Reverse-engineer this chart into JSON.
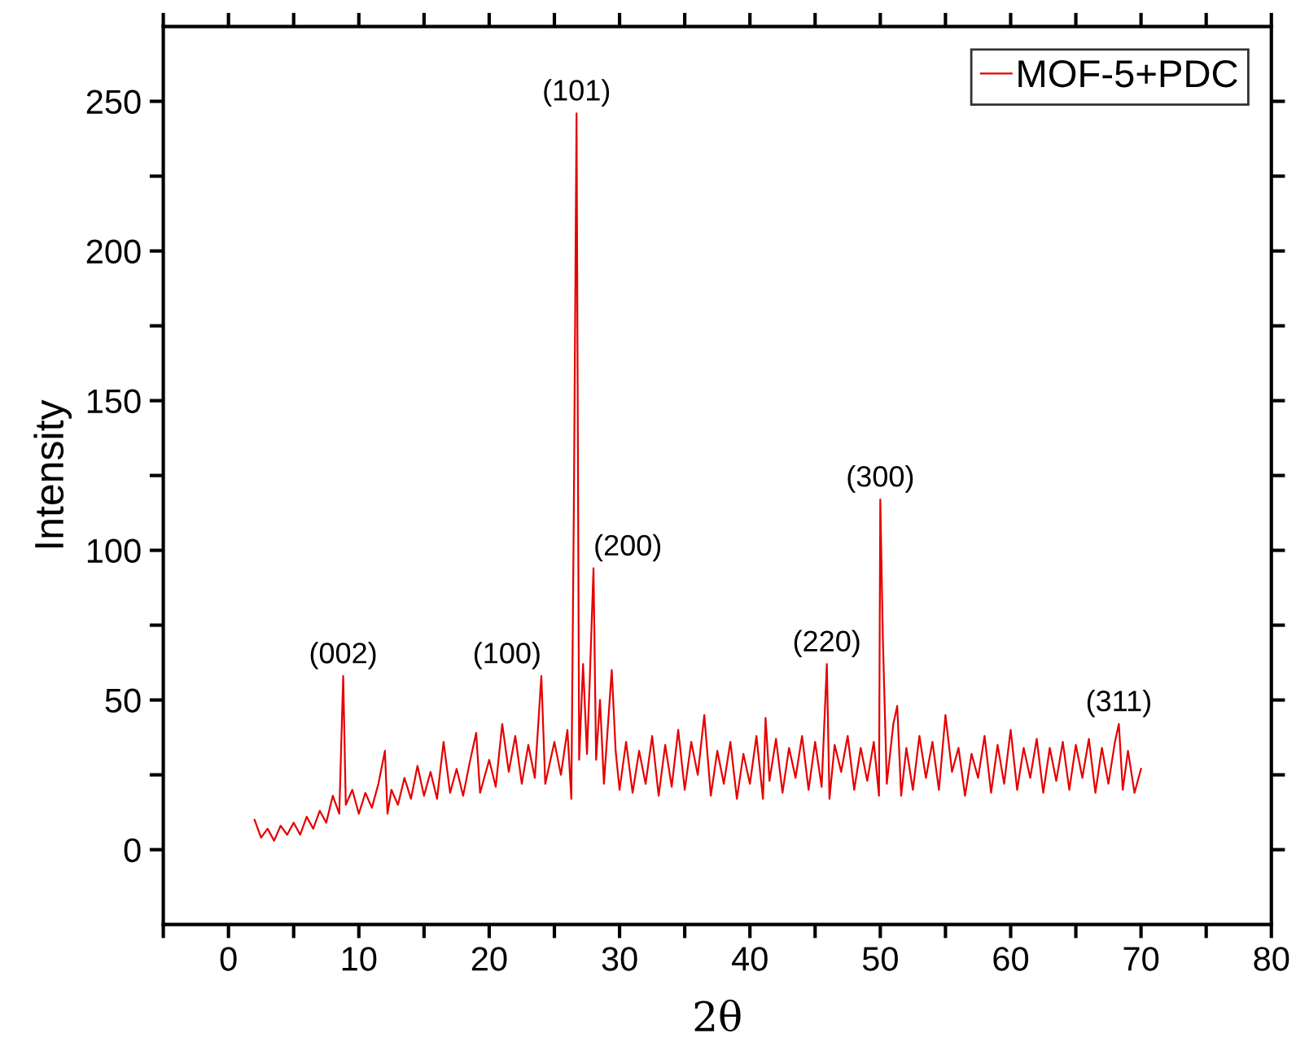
{
  "chart_data": {
    "type": "line",
    "xlabel": "2θ",
    "ylabel": "Intensity",
    "x": [
      2.0,
      2.5,
      3.0,
      3.5,
      4.0,
      4.5,
      5.0,
      5.5,
      6.0,
      6.5,
      7.0,
      7.5,
      8.0,
      8.5,
      8.8,
      9.0,
      9.5,
      10.0,
      10.5,
      11.0,
      11.5,
      12.0,
      12.2,
      12.5,
      13.0,
      13.5,
      14.0,
      14.5,
      15.0,
      15.5,
      16.0,
      16.5,
      17.0,
      17.5,
      18.0,
      18.5,
      19.0,
      19.3,
      20.0,
      20.5,
      21.0,
      21.5,
      22.0,
      22.5,
      23.0,
      23.5,
      24.0,
      24.3,
      25.0,
      25.5,
      26.0,
      26.3,
      26.5,
      26.7,
      26.9,
      27.2,
      27.5,
      27.7,
      28.0,
      28.2,
      28.5,
      28.8,
      29.4,
      29.7,
      30.0,
      30.5,
      31.0,
      31.5,
      32.0,
      32.5,
      33.0,
      33.5,
      34.0,
      34.5,
      35.0,
      35.5,
      36.0,
      36.5,
      37.0,
      37.5,
      38.0,
      38.5,
      39.0,
      39.5,
      40.0,
      40.5,
      41.0,
      41.2,
      41.5,
      42.0,
      42.5,
      43.0,
      43.5,
      44.0,
      44.5,
      45.0,
      45.5,
      45.9,
      46.1,
      46.5,
      47.0,
      47.5,
      48.0,
      48.5,
      49.0,
      49.5,
      49.9,
      50.0,
      50.2,
      50.5,
      51.0,
      51.3,
      51.6,
      52.0,
      52.5,
      53.0,
      53.5,
      54.0,
      54.5,
      55.0,
      55.5,
      56.0,
      56.5,
      57.0,
      57.5,
      58.0,
      58.5,
      59.0,
      59.5,
      60.0,
      60.5,
      61.0,
      61.5,
      62.0,
      62.5,
      63.0,
      63.5,
      64.0,
      64.5,
      65.0,
      65.5,
      66.0,
      66.5,
      67.0,
      67.5,
      68.0,
      68.3,
      68.6,
      69.0,
      69.5,
      70.0
    ],
    "series": [
      {
        "name": "MOF-5+PDC",
        "color": "#e60000",
        "values": [
          10,
          4,
          7,
          3,
          8,
          5,
          9,
          5,
          11,
          7,
          13,
          9,
          18,
          12,
          58,
          15,
          20,
          12,
          19,
          14,
          22,
          33,
          12,
          20,
          15,
          24,
          17,
          28,
          18,
          26,
          17,
          36,
          19,
          27,
          18,
          29,
          39,
          19,
          30,
          21,
          42,
          26,
          38,
          22,
          35,
          24,
          58,
          22,
          36,
          25,
          40,
          17,
          118,
          246,
          30,
          62,
          32,
          55,
          94,
          30,
          50,
          22,
          60,
          33,
          20,
          36,
          19,
          33,
          22,
          38,
          18,
          35,
          21,
          40,
          20,
          36,
          25,
          45,
          18,
          33,
          22,
          36,
          17,
          32,
          22,
          38,
          17,
          44,
          23,
          37,
          19,
          34,
          24,
          38,
          20,
          36,
          21,
          62,
          17,
          35,
          26,
          38,
          20,
          34,
          23,
          36,
          18,
          117,
          70,
          22,
          42,
          48,
          18,
          34,
          20,
          38,
          24,
          36,
          20,
          45,
          26,
          34,
          18,
          32,
          24,
          38,
          19,
          35,
          22,
          40,
          20,
          34,
          24,
          37,
          19,
          34,
          23,
          36,
          20,
          35,
          24,
          37,
          19,
          34,
          22,
          36,
          42,
          20,
          33,
          19,
          27
        ]
      }
    ],
    "xlim": [
      -5,
      80
    ],
    "xticks": [
      {
        "value": -5,
        "label": null
      },
      0,
      {
        "value": 5,
        "label": null
      },
      10,
      {
        "value": 15,
        "label": null
      },
      20,
      {
        "value": 25,
        "label": null
      },
      30,
      {
        "value": 35,
        "label": null
      },
      40,
      {
        "value": 45,
        "label": null
      },
      50,
      {
        "value": 55,
        "label": null
      },
      60,
      {
        "value": 65,
        "label": null
      },
      70,
      {
        "value": 75,
        "label": null
      },
      80
    ],
    "ylim": [
      -25,
      275
    ],
    "yticks": [
      0,
      {
        "value": 25,
        "label": null
      },
      50,
      {
        "value": 75,
        "label": null
      },
      100,
      {
        "value": 125,
        "label": null
      },
      150,
      {
        "value": 175,
        "label": null
      },
      200,
      {
        "value": 225,
        "label": null
      },
      250
    ],
    "annotations": [
      {
        "text": "(002)",
        "x": 8.8,
        "y": 58
      },
      {
        "text": "(100)",
        "x": 24.0,
        "y": 58
      },
      {
        "text": "(101)",
        "x": 26.7,
        "y": 246
      },
      {
        "text": "(200)",
        "x": 28.0,
        "y": 94
      },
      {
        "text": "(220)",
        "x": 45.9,
        "y": 62
      },
      {
        "text": "(300)",
        "x": 50.0,
        "y": 117
      },
      {
        "text": "(311)",
        "x": 68.3,
        "y": 42
      }
    ],
    "legend": "top right",
    "grid": false,
    "line_style": "solid",
    "marker": "none"
  }
}
